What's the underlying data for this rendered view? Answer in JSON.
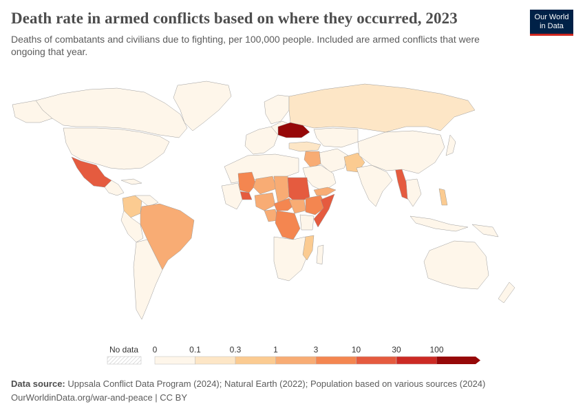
{
  "header": {
    "title": "Death rate in armed conflicts based on where they occurred, 2023",
    "subtitle": "Deaths of combatants and civilians due to fighting, per 100,000 people. Included are armed conflicts that were ongoing that year."
  },
  "logo": {
    "line1": "Our World",
    "line2": "in Data"
  },
  "legend": {
    "no_data_label": "No data",
    "ticks": [
      "0",
      "0.1",
      "0.3",
      "1",
      "3",
      "10",
      "30",
      "100"
    ],
    "bins": [
      {
        "range": "0–0.1",
        "color": "#fef6ea"
      },
      {
        "range": "0.1–0.3",
        "color": "#fde6c6"
      },
      {
        "range": "0.3–1",
        "color": "#fbcb91"
      },
      {
        "range": "1–3",
        "color": "#f8ac74"
      },
      {
        "range": "3–10",
        "color": "#f48650"
      },
      {
        "range": "10–30",
        "color": "#e55b3f"
      },
      {
        "range": "30–100",
        "color": "#cc2a24"
      },
      {
        "range": ">100",
        "color": "#960808"
      }
    ]
  },
  "map_data": {
    "type": "choropleth",
    "year": "2023",
    "regions": [
      {
        "name": "Ukraine",
        "bin": ">100"
      },
      {
        "name": "Sudan",
        "bin": "10–30"
      },
      {
        "name": "Somalia",
        "bin": "10–30"
      },
      {
        "name": "Mexico",
        "bin": "10–30"
      },
      {
        "name": "Burkina Faso",
        "bin": "10–30"
      },
      {
        "name": "Myanmar",
        "bin": "10–30"
      },
      {
        "name": "Democratic Republic of Congo",
        "bin": "3–10"
      },
      {
        "name": "Mali",
        "bin": "3–10"
      },
      {
        "name": "Ethiopia",
        "bin": "3–10"
      },
      {
        "name": "Central African Republic",
        "bin": "3–10"
      },
      {
        "name": "Israel and Palestine",
        "bin": "10–30"
      },
      {
        "name": "Nigeria",
        "bin": "1–3"
      },
      {
        "name": "Niger",
        "bin": "1–3"
      },
      {
        "name": "Chad",
        "bin": "1–3"
      },
      {
        "name": "South Sudan",
        "bin": "1–3"
      },
      {
        "name": "Syria",
        "bin": "1–3"
      },
      {
        "name": "Brazil",
        "bin": "1–3"
      },
      {
        "name": "Cameroon",
        "bin": "1–3"
      },
      {
        "name": "Yemen",
        "bin": "1–3"
      },
      {
        "name": "Afghanistan",
        "bin": "0.3–1"
      },
      {
        "name": "Colombia",
        "bin": "0.3–1"
      },
      {
        "name": "Mozambique",
        "bin": "0.3–1"
      },
      {
        "name": "Russia",
        "bin": "0.1–0.3"
      },
      {
        "name": "Iraq",
        "bin": "0.1–0.3"
      },
      {
        "name": "Turkey",
        "bin": "0.1–0.3"
      },
      {
        "name": "Philippines",
        "bin": "0.3–1"
      },
      {
        "name": "United States",
        "bin": "0–0.1"
      },
      {
        "name": "Canada",
        "bin": "0–0.1"
      },
      {
        "name": "China",
        "bin": "0–0.1"
      },
      {
        "name": "India",
        "bin": "0–0.1"
      },
      {
        "name": "Australia",
        "bin": "0–0.1"
      }
    ]
  },
  "footer": {
    "source_label": "Data source:",
    "source_text": "Uppsala Conflict Data Program (2024); Natural Earth (2022); Population based on various sources (2024)",
    "url": "OurWorldinData.org/war-and-peace | CC BY"
  }
}
